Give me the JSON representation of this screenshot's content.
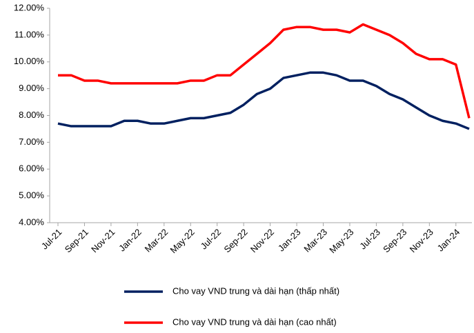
{
  "chart_data": {
    "type": "line",
    "categories": [
      "Jul-21",
      null,
      "Sep-21",
      null,
      "Nov-21",
      null,
      "Jan-22",
      null,
      "Mar-22",
      null,
      "May-22",
      null,
      "Jul-22",
      null,
      "Sep-22",
      null,
      "Nov-22",
      null,
      "Jan-23",
      null,
      "Mar-23",
      null,
      "May-23",
      null,
      "Jul-23",
      null,
      "Sep-23",
      null,
      "Nov-23",
      null,
      "Jan-24",
      null
    ],
    "series": [
      {
        "name": "Cho vay VND trung và dài hạn (thấp nhất)",
        "color": "#002060",
        "values": [
          7.7,
          7.6,
          7.6,
          7.6,
          7.6,
          7.8,
          7.8,
          7.7,
          7.7,
          7.8,
          7.9,
          7.9,
          8.0,
          8.1,
          8.4,
          8.8,
          9.0,
          9.4,
          9.5,
          9.6,
          9.6,
          9.5,
          9.3,
          9.3,
          9.1,
          8.8,
          8.6,
          8.3,
          8.0,
          7.8,
          7.7,
          7.5
        ]
      },
      {
        "name": "Cho vay VND trung và dài hạn (cao nhất)",
        "color": "#ff0000",
        "values": [
          9.5,
          9.5,
          9.3,
          9.3,
          9.2,
          9.2,
          9.2,
          9.2,
          9.2,
          9.2,
          9.3,
          9.3,
          9.5,
          9.5,
          9.9,
          10.3,
          10.7,
          11.2,
          11.3,
          11.3,
          11.2,
          11.2,
          11.1,
          11.4,
          11.2,
          11.0,
          10.7,
          10.3,
          10.1,
          10.1,
          9.9,
          7.9
        ]
      }
    ],
    "ylim": [
      4,
      12
    ],
    "yticks": [
      {
        "value": 4,
        "label": "4.00%"
      },
      {
        "value": 5,
        "label": "5.00%"
      },
      {
        "value": 6,
        "label": "6.00%"
      },
      {
        "value": 7,
        "label": "7.00%"
      },
      {
        "value": 8,
        "label": "8.00%"
      },
      {
        "value": 9,
        "label": "9.00%"
      },
      {
        "value": 10,
        "label": "10.00%"
      },
      {
        "value": 11,
        "label": "11.00%"
      },
      {
        "value": 12,
        "label": "12.00%"
      }
    ],
    "grid": false
  }
}
